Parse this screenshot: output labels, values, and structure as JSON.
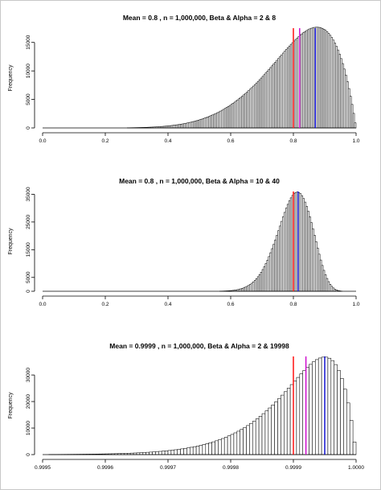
{
  "chart_data": [
    {
      "type": "bar",
      "title": "Mean = 0.8 , n = 1,000,000, Beta & Alpha = 2 & 8",
      "xlabel": "",
      "ylabel": "Frequency",
      "xlim": [
        0.0,
        1.0
      ],
      "ylim": [
        0,
        17500
      ],
      "x_ticks": [
        "0.0",
        "0.2",
        "0.4",
        "0.6",
        "0.8",
        "1.0"
      ],
      "y_ticks": [
        "0",
        "5000",
        "10000",
        "15000"
      ],
      "distribution": {
        "family": "beta",
        "a": 8,
        "b": 2,
        "n": 1000000,
        "bin_width": 0.005
      },
      "vlines": [
        {
          "x": 0.8,
          "color": "#ff0000"
        },
        {
          "x": 0.82,
          "color": "#cc00cc"
        },
        {
          "x": 0.87,
          "color": "#0000cc"
        }
      ],
      "grid": false
    },
    {
      "type": "bar",
      "title": "Mean = 0.8 , n = 1,000,000, Beta & Alpha = 10 & 40",
      "xlabel": "",
      "ylabel": "Frequency",
      "xlim": [
        0.0,
        1.0
      ],
      "ylim": [
        0,
        36000
      ],
      "x_ticks": [
        "0.0",
        "0.2",
        "0.4",
        "0.6",
        "0.8",
        "1.0"
      ],
      "y_ticks": [
        "0",
        "5000",
        "15000",
        "25000",
        "35000"
      ],
      "distribution": {
        "family": "beta",
        "a": 40,
        "b": 10,
        "n": 1000000,
        "bin_width": 0.005
      },
      "vlines": [
        {
          "x": 0.8,
          "color": "#ff0000"
        },
        {
          "x": 0.815,
          "color": "#0000cc"
        }
      ],
      "grid": false
    },
    {
      "type": "bar",
      "title": "Mean = 0.9999 , n = 1,000,000, Beta & Alpha = 2 & 19998",
      "xlabel": "",
      "ylabel": "Frequency",
      "xlim": [
        0.9995,
        1.0
      ],
      "ylim": [
        0,
        37000
      ],
      "x_ticks": [
        "0.9995",
        "0.9996",
        "0.9997",
        "0.9998",
        "0.9999",
        "1.0000"
      ],
      "y_ticks": [
        "0",
        "10000",
        "20000",
        "30000"
      ],
      "distribution": {
        "family": "beta",
        "a": 19998,
        "b": 2,
        "n": 1000000,
        "bin_width": 5e-06
      },
      "vlines": [
        {
          "x": 0.9999,
          "color": "#ff0000"
        },
        {
          "x": 0.99992,
          "color": "#cc00cc"
        },
        {
          "x": 0.99995,
          "color": "#0000cc"
        }
      ],
      "grid": false
    }
  ]
}
